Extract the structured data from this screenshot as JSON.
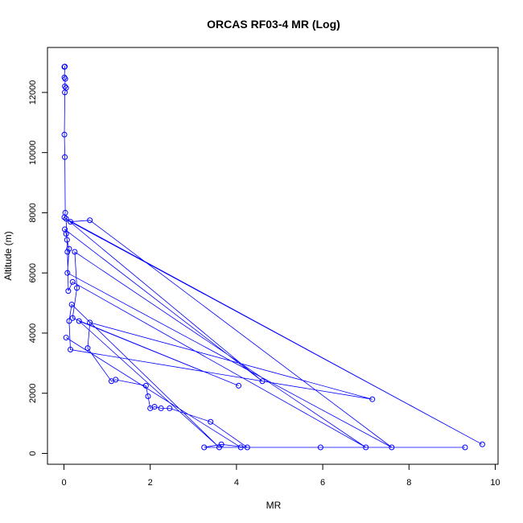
{
  "chart_data": {
    "type": "line",
    "title": "ORCAS RF03-4 MR (Log)",
    "xlabel": "MR",
    "ylabel": "Altitude (m)",
    "xlim": [
      0,
      10
    ],
    "ylim": [
      0,
      13000
    ],
    "x_ticks": [
      0,
      2,
      4,
      6,
      8,
      10
    ],
    "y_ticks": [
      0,
      2000,
      4000,
      6000,
      8000,
      10000,
      12000
    ],
    "grid": false,
    "legend": "none",
    "markers": "open-circle",
    "series_color": "#0000ff",
    "series": [
      {
        "x": [
          0.01,
          0.02,
          0.01,
          0.03,
          0.02,
          0.05,
          0.02,
          0.01,
          0.02,
          0.03,
          0.01,
          4.6,
          0.02,
          0.05,
          0.07,
          0.12,
          0.08,
          7.6,
          0.6,
          0.15,
          9.7,
          0.05,
          0.08,
          0.1,
          0.2,
          7.0,
          0.25,
          0.3,
          0.2,
          4.05,
          0.35,
          3.6,
          0.18,
          0.12,
          0.15,
          7.15,
          0.6,
          0.55,
          1.1,
          1.2,
          1.9,
          1.95,
          2.0,
          2.1,
          2.25,
          2.45,
          3.4,
          4.25,
          3.65,
          3.25,
          5.95,
          9.3,
          4.1,
          0.05
        ],
        "y": [
          12850,
          12860,
          12500,
          12450,
          12200,
          12150,
          12000,
          10600,
          9850,
          8000,
          7850,
          2400,
          7450,
          7300,
          7100,
          6800,
          6000,
          200,
          7750,
          7700,
          300,
          7800,
          6700,
          5400,
          5700,
          200,
          6700,
          5500,
          4500,
          2250,
          4400,
          200,
          4950,
          4400,
          3450,
          1800,
          4350,
          3500,
          2400,
          2450,
          2250,
          1900,
          1500,
          1550,
          1500,
          1500,
          1050,
          200,
          300,
          200,
          200,
          200,
          200,
          3850
        ]
      }
    ]
  }
}
